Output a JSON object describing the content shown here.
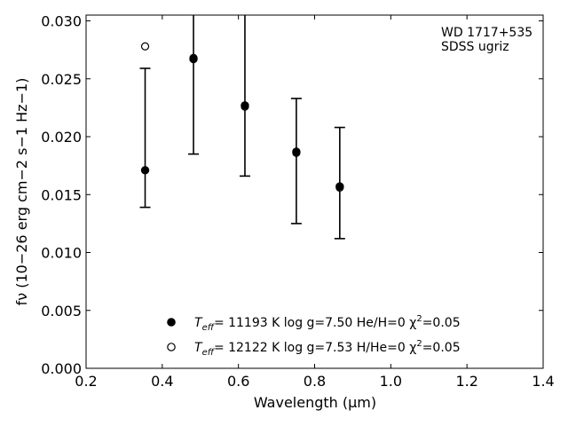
{
  "chart_data": {
    "type": "scatter",
    "title": "",
    "xlabel": "Wavelength (μm)",
    "ylabel": "fν (10−26 erg cm−2 s−1 Hz−1)",
    "xlim": [
      0.2,
      1.4
    ],
    "ylim": [
      0.0,
      0.0305
    ],
    "x_ticks": [
      0.2,
      0.4,
      0.6,
      0.8,
      1.0,
      1.2,
      1.4
    ],
    "x_tick_labels": [
      "0.2",
      "0.4",
      "0.6",
      "0.8",
      "1.0",
      "1.2",
      "1.4"
    ],
    "y_ticks": [
      0.0,
      0.005,
      0.01,
      0.015,
      0.02,
      0.025,
      0.03
    ],
    "y_tick_labels": [
      "0.000",
      "0.005",
      "0.010",
      "0.015",
      "0.020",
      "0.025",
      "0.030"
    ],
    "annotation": [
      "WD 1717+535",
      "SDSS ugriz"
    ],
    "legend_position": "bottom-center",
    "grid": false,
    "x": [
      0.355,
      0.482,
      0.617,
      0.752,
      0.866
    ],
    "series": [
      {
        "name": "Teff= 11193 K  log g=7.50  He/H=0  χ2=0.05",
        "marker": "filled-circle",
        "color": "#000000",
        "y": [
          0.0171,
          0.0267,
          0.0227,
          0.0187,
          0.0157
        ],
        "yerr_low": [
          0.0139,
          0.0185,
          0.0166,
          0.0125,
          0.0112
        ],
        "yerr_high": [
          0.0259,
          0.0305,
          0.0305,
          0.0233,
          0.0208
        ]
      },
      {
        "name": "Teff= 12122 K  log g=7.53  H/He=0  χ2=0.05",
        "marker": "open-circle",
        "color": "#000000",
        "y": [
          0.0278,
          0.0268,
          0.0226,
          0.0186,
          0.0156
        ]
      }
    ],
    "legend": [
      {
        "prefix": "T",
        "sub": "eff",
        "mid": "= 11193 K  log g=7.50  He/H=0  χ",
        "sup": "2",
        "suffix": "=0.05"
      },
      {
        "prefix": "T",
        "sub": "eff",
        "mid": "= 12122 K  log g=7.53  H/He=0  χ",
        "sup": "2",
        "suffix": "=0.05"
      }
    ]
  }
}
